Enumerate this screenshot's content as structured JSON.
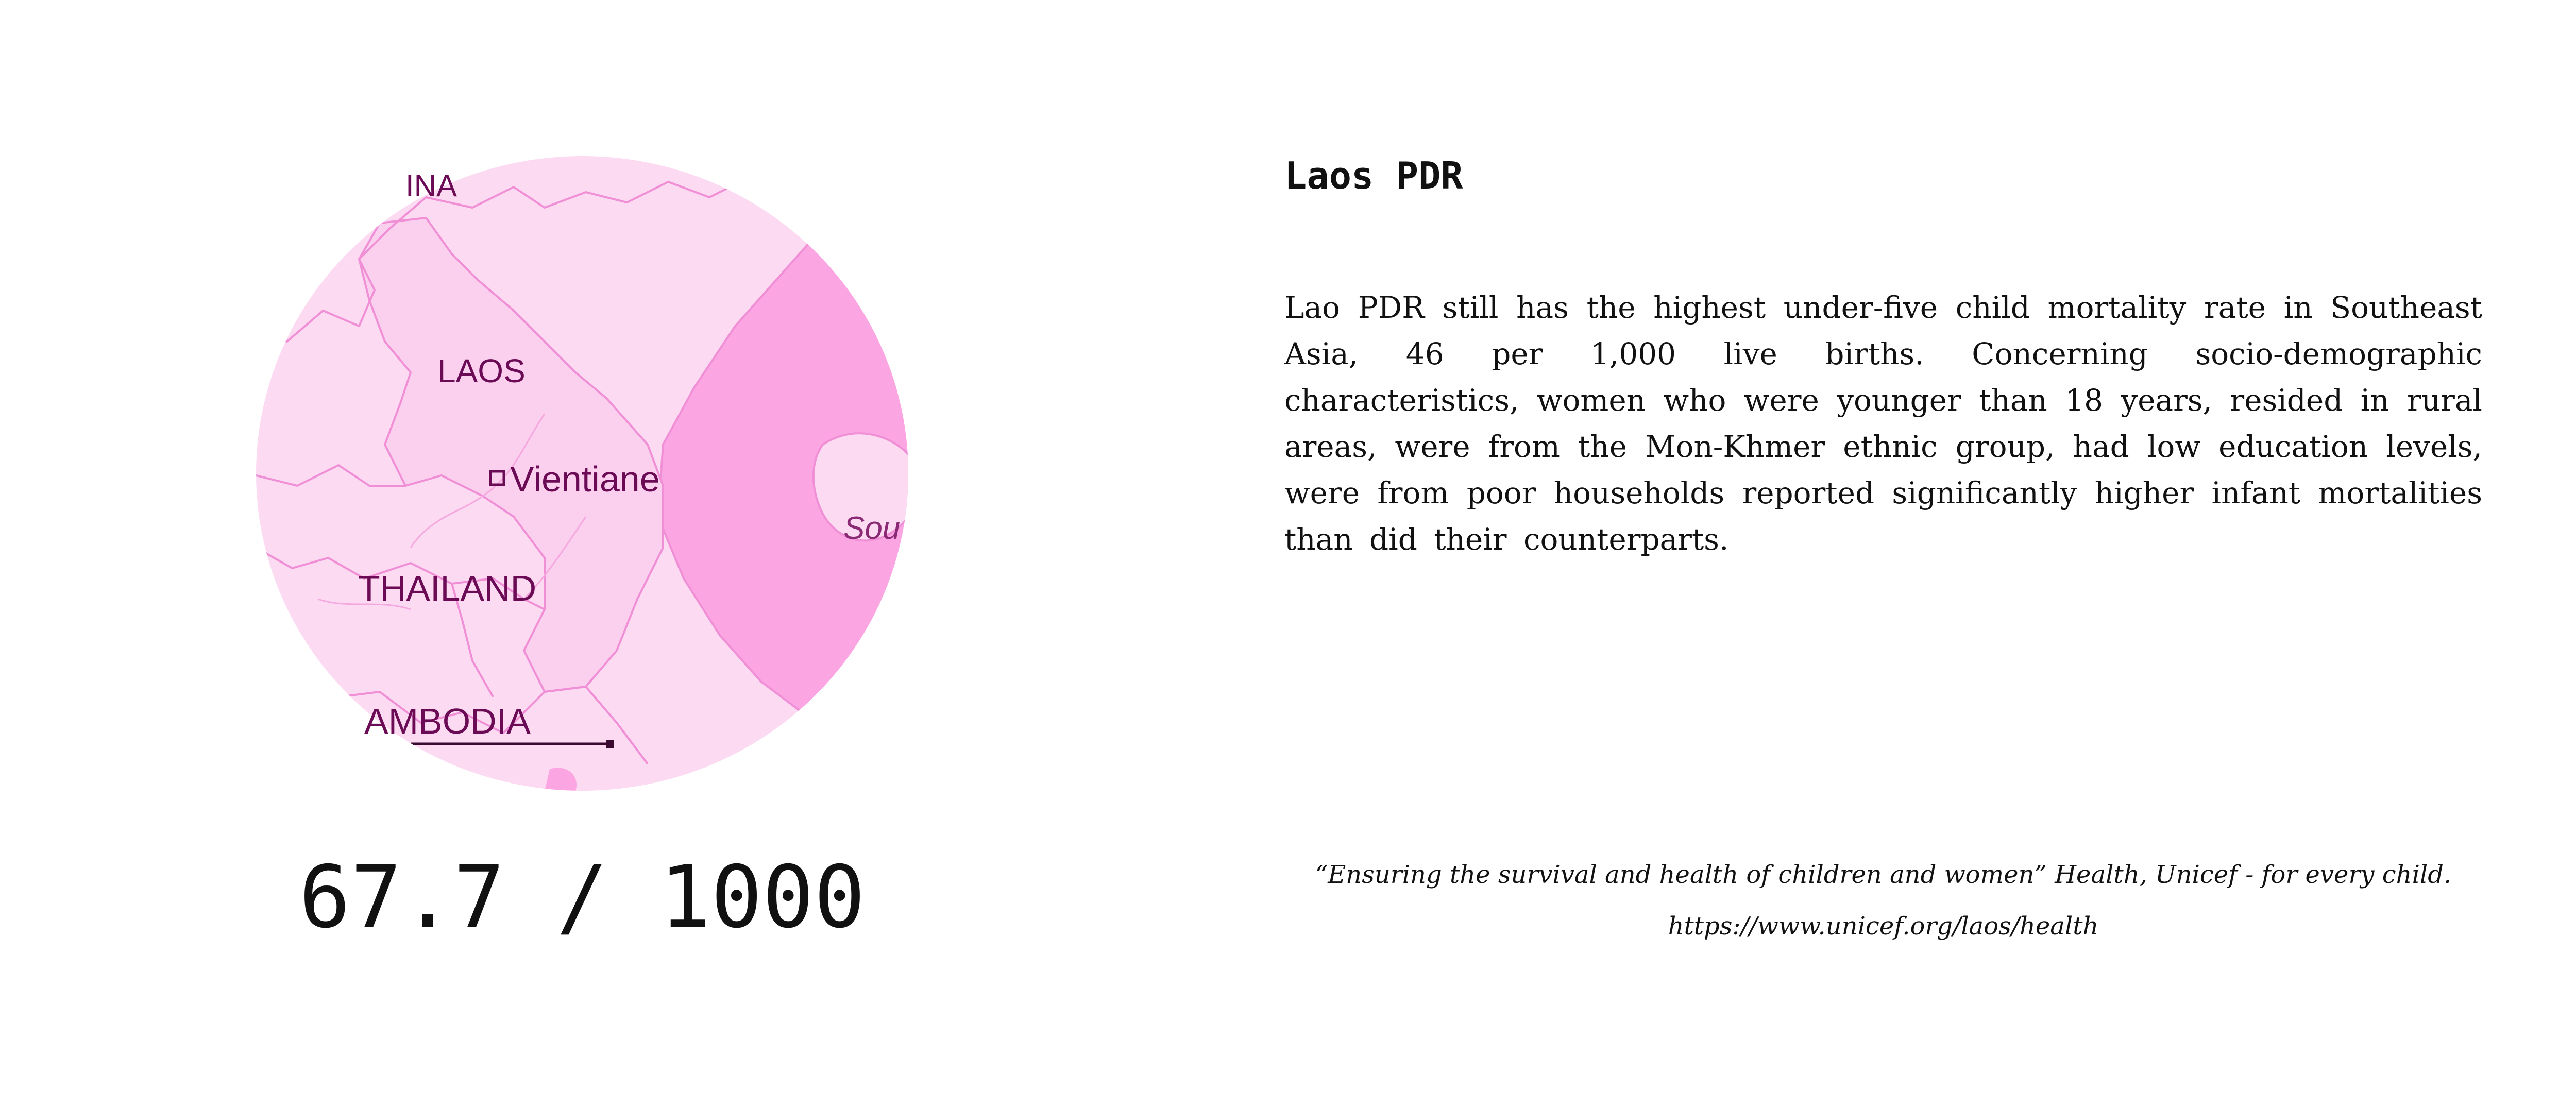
{
  "map": {
    "labels": {
      "china": "INA",
      "laos": "LAOS",
      "capital": "Vientiane",
      "thailand": "THAILAND",
      "cambodia": "AMBODIA",
      "sea": "Sou"
    },
    "colors": {
      "land": "#fcdaf2",
      "land_dark": "#fbd0ee",
      "sea": "#fba5e2",
      "border": "#f08fd6",
      "text": "#6b0a55"
    }
  },
  "stat": {
    "rate": "67.7 / 1000"
  },
  "info": {
    "title": "Laos PDR",
    "paragraph": "Lao PDR still has the highest under-five child mortality rate in Southeast Asia, 46 per 1,000 live births. Concerning socio-demographic characteristics, women who were younger than 18 years, resided in rural areas, were from the Mon-Khmer ethnic group, had low education levels, were from poor households reported significantly higher infant mortalities than did their counterparts."
  },
  "citation": {
    "line1": "“Ensuring the survival and health of children and women” Health, Unicef - for every child.",
    "line2": "https://www.unicef.org/laos/health"
  }
}
